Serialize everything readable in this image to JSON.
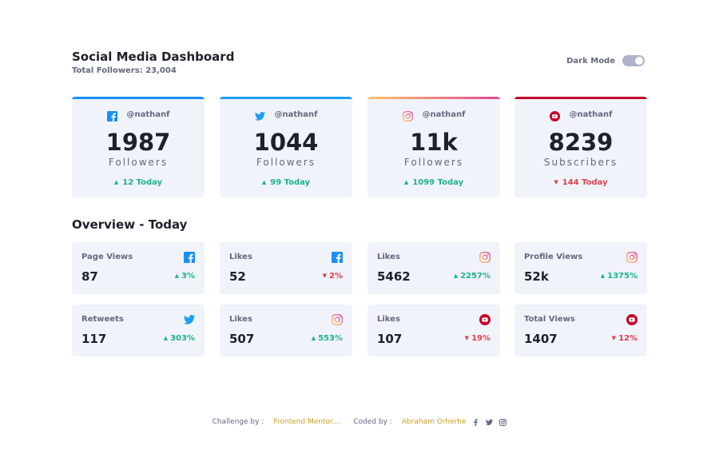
{
  "header": {
    "title": "Social Media Dashboard",
    "total_followers": "Total Followers: 23,004",
    "dark_mode_label": "Dark Mode",
    "dark_mode_on": false
  },
  "colors": {
    "facebook": "#198ff5",
    "twitter": "#1ca0f2",
    "instagram_start": "#fdc468",
    "instagram_end": "#df4996",
    "youtube": "#c4032a",
    "up": "#1db489",
    "down": "#dc414c",
    "card_bg": "#f0f3fa",
    "footer_link": "#c9a21f"
  },
  "cards": [
    {
      "platform": "facebook",
      "icon": "facebook-icon",
      "handle": "@nathanf",
      "count": "1987",
      "unit": "Followers",
      "today": "12 Today",
      "trend": "up"
    },
    {
      "platform": "twitter",
      "icon": "twitter-icon",
      "handle": "@nathanf",
      "count": "1044",
      "unit": "Followers",
      "today": "99 Today",
      "trend": "up"
    },
    {
      "platform": "instagram",
      "icon": "instagram-icon",
      "handle": "@nathanf",
      "count": "11k",
      "unit": "Followers",
      "today": "1099 Today",
      "trend": "up"
    },
    {
      "platform": "youtube",
      "icon": "youtube-icon",
      "handle": "@nathanf",
      "count": "8239",
      "unit": "Subscribers",
      "today": "144 Today",
      "trend": "down"
    }
  ],
  "overview": {
    "title": "Overview - Today",
    "tiles": [
      {
        "label": "Page Views",
        "icon": "facebook-icon",
        "value": "87",
        "percent": "3%",
        "trend": "up"
      },
      {
        "label": "Likes",
        "icon": "facebook-icon",
        "value": "52",
        "percent": "2%",
        "trend": "down"
      },
      {
        "label": "Likes",
        "icon": "instagram-icon",
        "value": "5462",
        "percent": "2257%",
        "trend": "up"
      },
      {
        "label": "Profile Views",
        "icon": "instagram-icon",
        "value": "52k",
        "percent": "1375%",
        "trend": "up"
      },
      {
        "label": "Retweets",
        "icon": "twitter-icon",
        "value": "117",
        "percent": "303%",
        "trend": "up"
      },
      {
        "label": "Likes",
        "icon": "instagram-icon",
        "value": "507",
        "percent": "553%",
        "trend": "up"
      },
      {
        "label": "Likes",
        "icon": "youtube-icon",
        "value": "107",
        "percent": "19%",
        "trend": "down"
      },
      {
        "label": "Total Views",
        "icon": "youtube-icon",
        "value": "1407",
        "percent": "12%",
        "trend": "down"
      }
    ]
  },
  "footer": {
    "challenge_label": "Challenge by :",
    "challenge_link": "Frontend Mentor....",
    "coded_label": "Coded by :",
    "coded_link": "Abraham Orherhe",
    "social_icons": [
      "facebook-icon",
      "twitter-icon",
      "instagram-icon"
    ]
  }
}
